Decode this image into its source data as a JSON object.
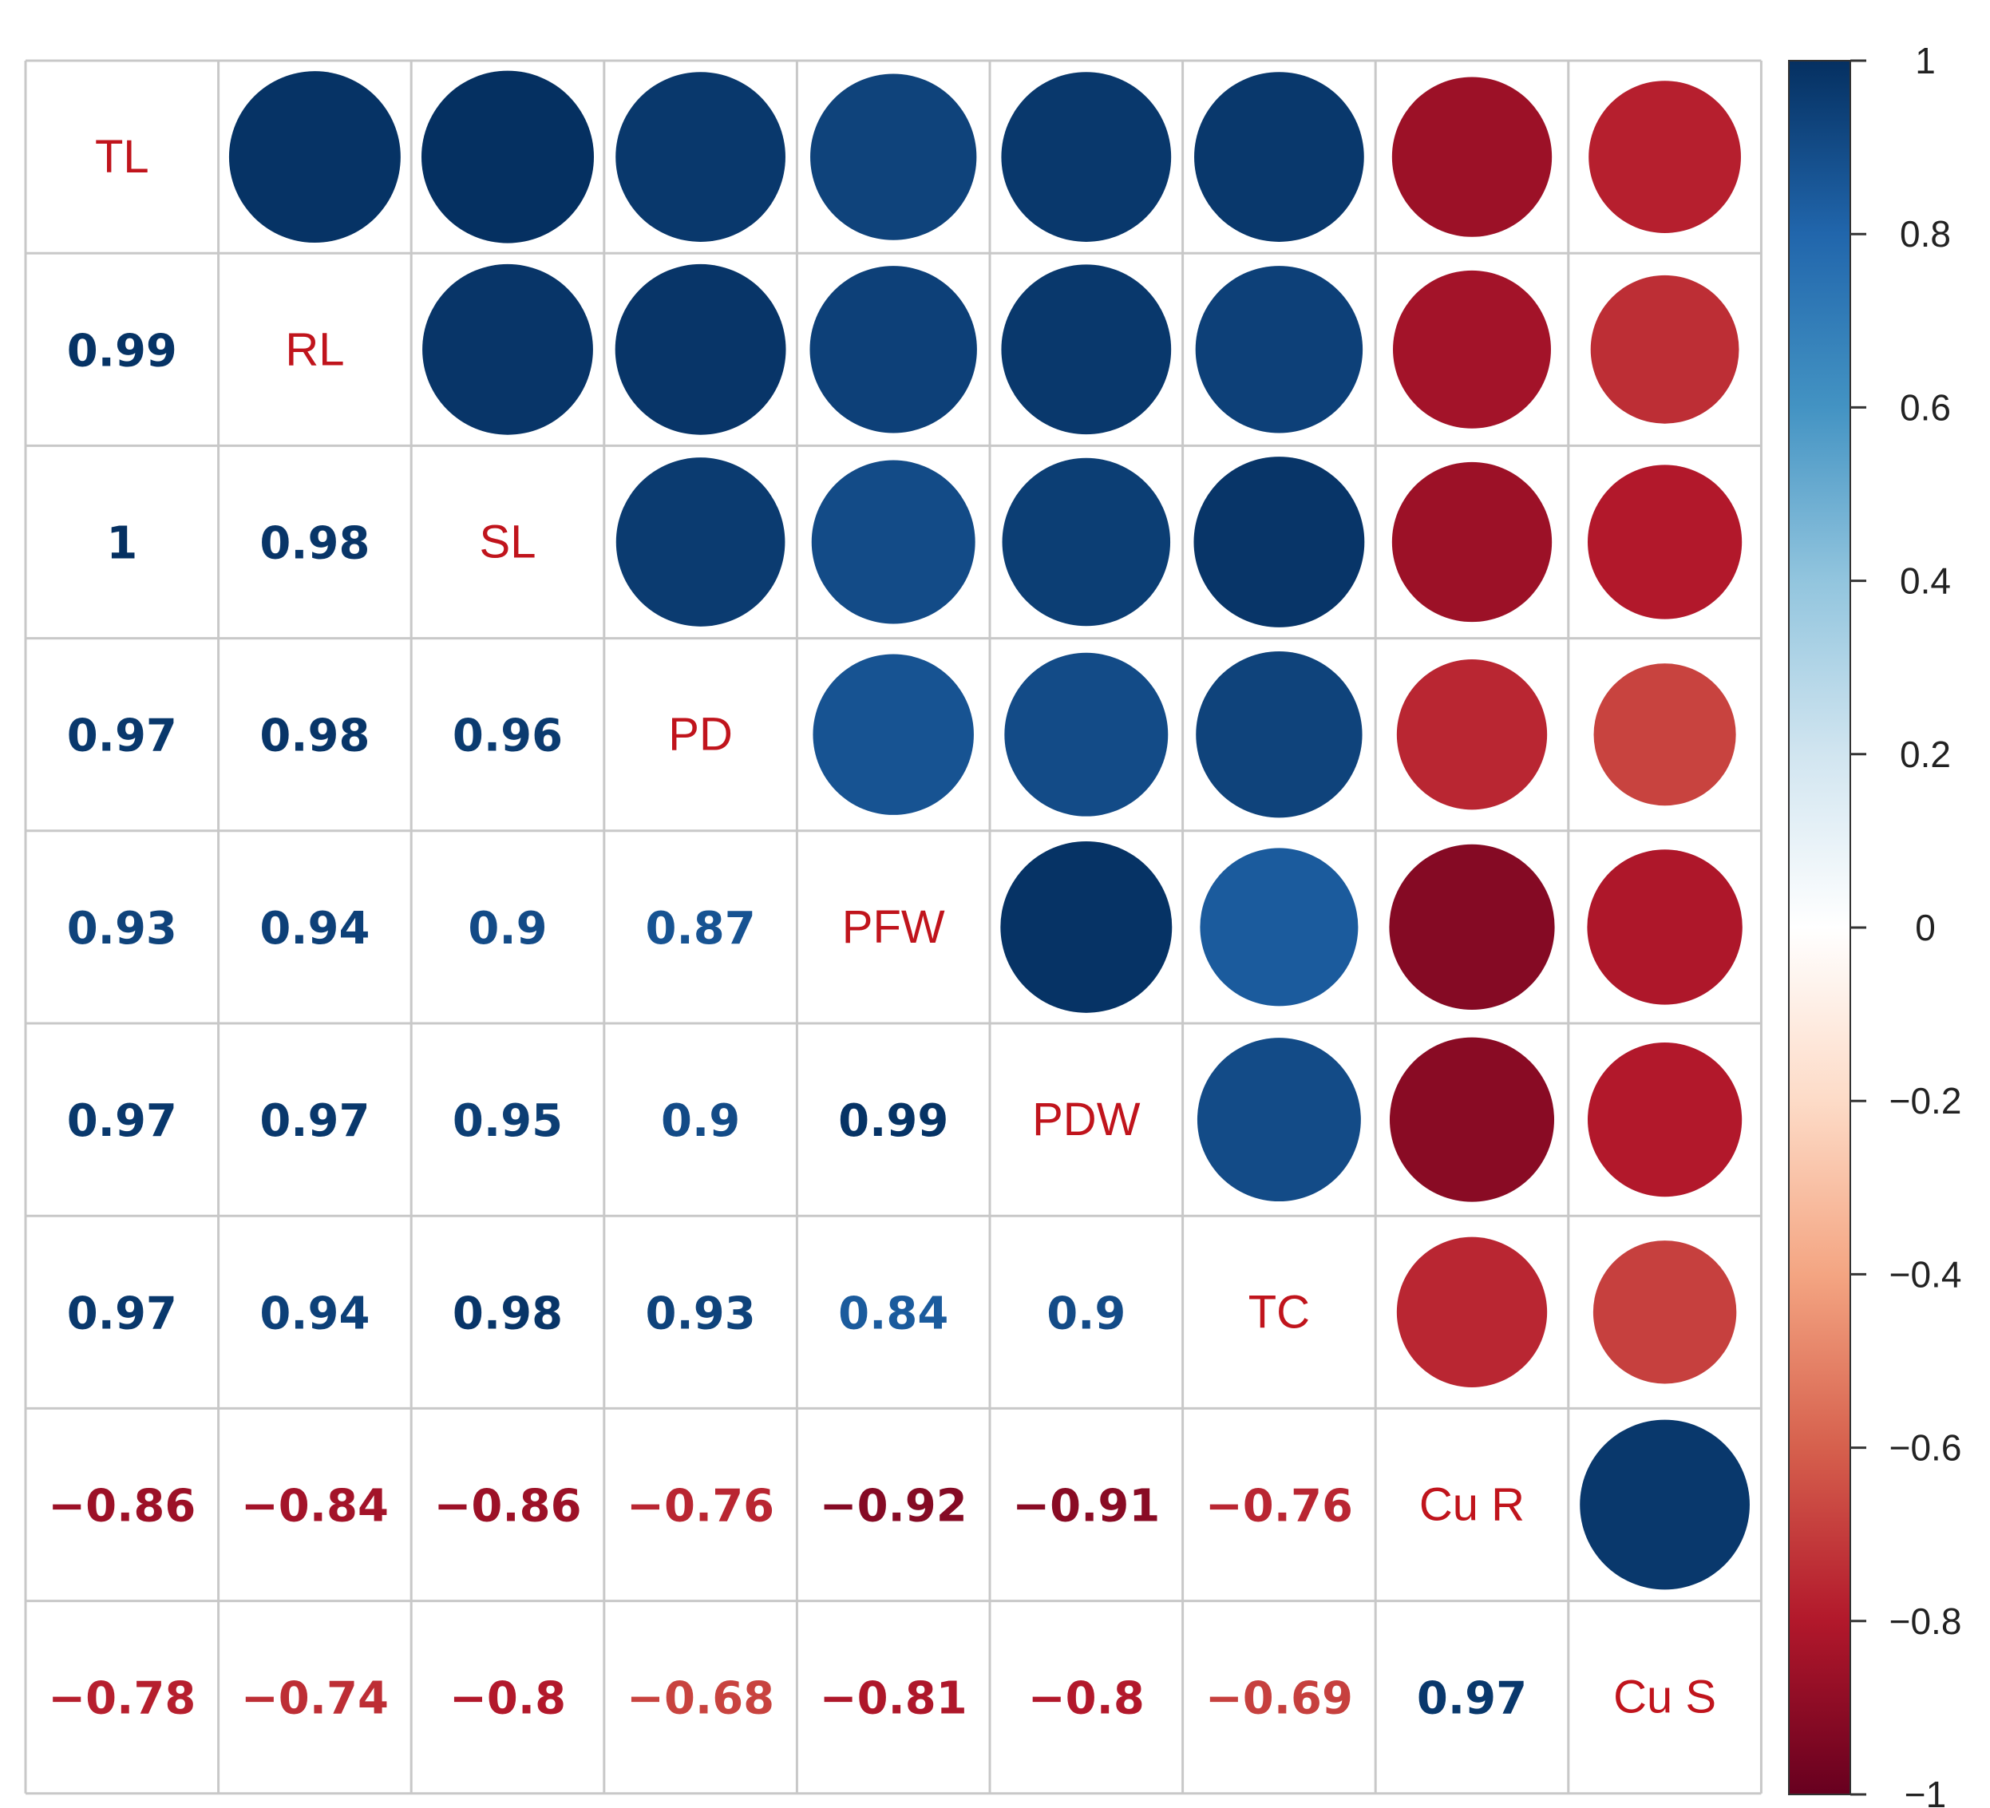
{
  "chart_data": {
    "type": "heatmap",
    "title": "",
    "subtitle": "",
    "variables": [
      "TL",
      "RL",
      "SL",
      "PD",
      "PFW",
      "PDW",
      "TC",
      "Cu R",
      "Cu S"
    ],
    "matrix": [
      [
        1,
        0.99,
        1,
        0.97,
        0.93,
        0.97,
        0.97,
        -0.86,
        -0.78
      ],
      [
        0.99,
        1,
        0.98,
        0.98,
        0.94,
        0.97,
        0.94,
        -0.84,
        -0.74
      ],
      [
        1,
        0.98,
        1,
        0.96,
        0.9,
        0.95,
        0.98,
        -0.86,
        -0.8
      ],
      [
        0.97,
        0.98,
        0.96,
        1,
        0.87,
        0.9,
        0.93,
        -0.76,
        -0.68
      ],
      [
        0.93,
        0.94,
        0.9,
        0.87,
        1,
        0.99,
        0.84,
        -0.92,
        -0.81
      ],
      [
        0.97,
        0.97,
        0.95,
        0.9,
        0.99,
        1,
        0.9,
        -0.91,
        -0.8
      ],
      [
        0.97,
        0.94,
        0.98,
        0.93,
        0.84,
        0.9,
        1,
        -0.76,
        -0.69
      ],
      [
        -0.86,
        -0.84,
        -0.86,
        -0.76,
        -0.92,
        -0.91,
        -0.76,
        1,
        0.97
      ],
      [
        -0.78,
        -0.74,
        -0.8,
        -0.68,
        -0.81,
        -0.8,
        -0.69,
        0.97,
        1
      ]
    ],
    "lower_text": [
      [
        "",
        "",
        "",
        "",
        "",
        "",
        "",
        "",
        ""
      ],
      [
        "0.99",
        "",
        "",
        "",
        "",
        "",
        "",
        "",
        ""
      ],
      [
        "1",
        "0.98",
        "",
        "",
        "",
        "",
        "",
        "",
        ""
      ],
      [
        "0.97",
        "0.98",
        "0.96",
        "",
        "",
        "",
        "",
        "",
        ""
      ],
      [
        "0.93",
        "0.94",
        "0.9",
        "0.87",
        "",
        "",
        "",
        "",
        ""
      ],
      [
        "0.97",
        "0.97",
        "0.95",
        "0.9",
        "0.99",
        "",
        "",
        "",
        ""
      ],
      [
        "0.97",
        "0.94",
        "0.98",
        "0.93",
        "0.84",
        "0.9",
        "",
        "",
        ""
      ],
      [
        "−0.86",
        "−0.84",
        "−0.86",
        "−0.76",
        "−0.92",
        "−0.91",
        "−0.76",
        "",
        ""
      ],
      [
        "−0.78",
        "−0.74",
        "−0.8",
        "−0.68",
        "−0.81",
        "−0.8",
        "−0.69",
        "0.97",
        ""
      ]
    ],
    "upper": "circle",
    "lower": "number",
    "diagonal": "labels",
    "colorbar": {
      "ticks": [
        1,
        0.8,
        0.6,
        0.4,
        0.2,
        0,
        -0.2,
        -0.4,
        -0.6,
        -0.8,
        -1
      ],
      "tick_labels": [
        "1",
        "0.8",
        "0.6",
        "0.4",
        "0.2",
        "0",
        "−0.2",
        "−0.4",
        "−0.6",
        "−0.8",
        "−1"
      ],
      "range": [
        -1,
        1
      ]
    },
    "colors": {
      "label": "#c0141c",
      "grid": "#c8c8c8",
      "scale": [
        "#67001f",
        "#b2182b",
        "#d6604d",
        "#f4a582",
        "#fddbc7",
        "#ffffff",
        "#d1e5f0",
        "#92c5de",
        "#4393c3",
        "#2166ac",
        "#053061"
      ]
    }
  }
}
